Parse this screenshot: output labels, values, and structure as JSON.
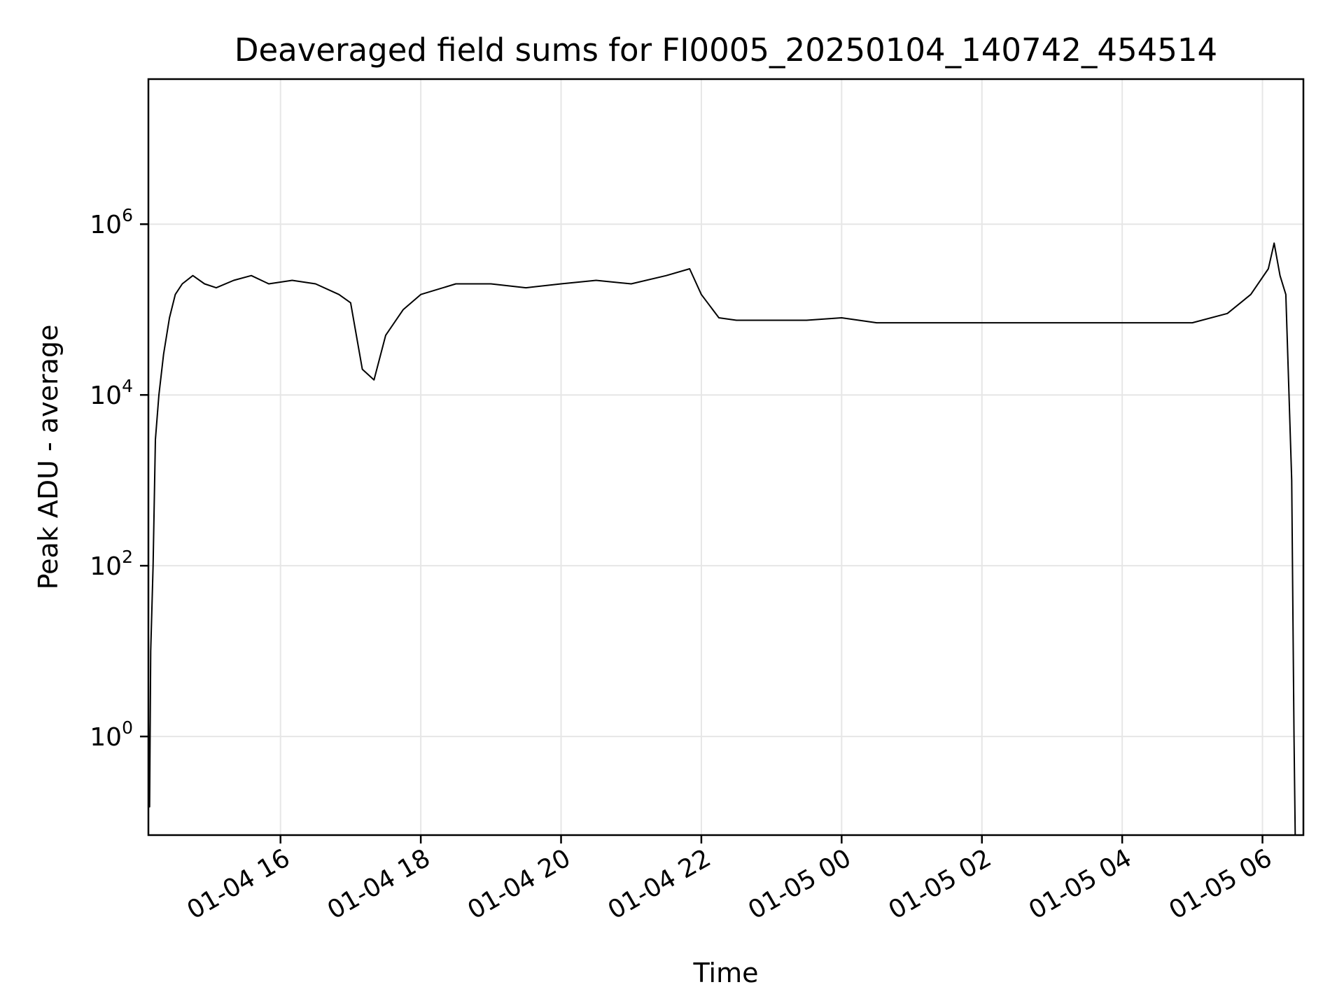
{
  "chart_data": {
    "type": "line",
    "title": "Deaveraged field sums for FI0005_20250104_140742_454514",
    "xlabel": "Time",
    "ylabel": "Peak ADU - average",
    "yscale": "log",
    "grid": true,
    "line_color": "#000000",
    "grid_color": "#e6e6e6",
    "xlim": [
      "2025-01-04 14:07",
      "2025-01-05 06:35"
    ],
    "ylim": [
      0.07,
      50000000
    ],
    "x_ticks": [
      {
        "value": "2025-01-04 16:00",
        "label": "01-04 16"
      },
      {
        "value": "2025-01-04 18:00",
        "label": "01-04 18"
      },
      {
        "value": "2025-01-04 20:00",
        "label": "01-04 20"
      },
      {
        "value": "2025-01-04 22:00",
        "label": "01-04 22"
      },
      {
        "value": "2025-01-05 00:00",
        "label": "01-05 00"
      },
      {
        "value": "2025-01-05 02:00",
        "label": "01-05 02"
      },
      {
        "value": "2025-01-05 04:00",
        "label": "01-05 04"
      },
      {
        "value": "2025-01-05 06:00",
        "label": "01-05 06"
      }
    ],
    "y_ticks": [
      {
        "value": 1,
        "base": "10",
        "exp": "0"
      },
      {
        "value": 100,
        "base": "10",
        "exp": "2"
      },
      {
        "value": 10000,
        "base": "10",
        "exp": "4"
      },
      {
        "value": 1000000,
        "base": "10",
        "exp": "6"
      }
    ],
    "series": [
      {
        "x": [
          "2025-01-04 14:07",
          "2025-01-04 14:08",
          "2025-01-04 14:09",
          "2025-01-04 14:11",
          "2025-01-04 14:13",
          "2025-01-04 14:16",
          "2025-01-04 14:20",
          "2025-01-04 14:25",
          "2025-01-04 14:30",
          "2025-01-04 14:36",
          "2025-01-04 14:45",
          "2025-01-04 14:55",
          "2025-01-04 15:05",
          "2025-01-04 15:20",
          "2025-01-04 15:35",
          "2025-01-04 15:50",
          "2025-01-04 16:10",
          "2025-01-04 16:30",
          "2025-01-04 16:50",
          "2025-01-04 17:00",
          "2025-01-04 17:10",
          "2025-01-04 17:20",
          "2025-01-04 17:30",
          "2025-01-04 17:45",
          "2025-01-04 18:00",
          "2025-01-04 18:30",
          "2025-01-04 19:00",
          "2025-01-04 19:30",
          "2025-01-04 20:00",
          "2025-01-04 20:30",
          "2025-01-04 21:00",
          "2025-01-04 21:30",
          "2025-01-04 21:50",
          "2025-01-04 22:00",
          "2025-01-04 22:15",
          "2025-01-04 22:30",
          "2025-01-04 23:00",
          "2025-01-04 23:30",
          "2025-01-05 00:00",
          "2025-01-05 00:30",
          "2025-01-05 01:00",
          "2025-01-05 01:30",
          "2025-01-05 02:00",
          "2025-01-05 02:30",
          "2025-01-05 03:00",
          "2025-01-05 03:30",
          "2025-01-05 04:00",
          "2025-01-05 04:30",
          "2025-01-05 05:00",
          "2025-01-05 05:30",
          "2025-01-05 05:50",
          "2025-01-05 06:05",
          "2025-01-05 06:10",
          "2025-01-05 06:15",
          "2025-01-05 06:20",
          "2025-01-05 06:22",
          "2025-01-05 06:25",
          "2025-01-05 06:27",
          "2025-01-05 06:28"
        ],
        "y": [
          1.5,
          0.15,
          10,
          100,
          3000,
          10000,
          30000,
          80000,
          150000,
          200000,
          250000,
          200000,
          180000,
          220000,
          250000,
          200000,
          220000,
          200000,
          150000,
          120000,
          20000,
          15000,
          50000,
          100000,
          150000,
          200000,
          200000,
          180000,
          200000,
          220000,
          200000,
          250000,
          300000,
          150000,
          80000,
          75000,
          75000,
          75000,
          80000,
          70000,
          70000,
          70000,
          70000,
          70000,
          70000,
          70000,
          70000,
          70000,
          70000,
          90000,
          150000,
          300000,
          600000,
          250000,
          150000,
          20000,
          1000,
          1,
          0.07
        ]
      }
    ]
  }
}
